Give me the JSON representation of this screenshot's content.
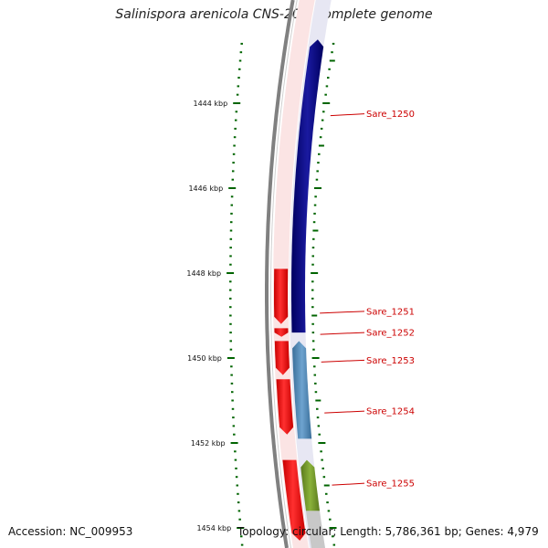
{
  "title": "Salinispora arenicola CNS-205, complete genome",
  "footer": {
    "accession_label": "Accession:",
    "accession": "NC_009953",
    "topology_label": "Topology:",
    "topology": "circular",
    "length_label": "Length:",
    "length": "5,786,361 bp",
    "genes_label": "Genes:",
    "genes": "4,979"
  },
  "axis": {
    "unit": "kbp",
    "start_kbp": 1442.6,
    "end_kbp": 1454.3,
    "major_ticks_kbp": [
      1444,
      1446,
      1448,
      1450,
      1452,
      1454
    ],
    "major_tick_labels": [
      "1444 kbp",
      "1446 kbp",
      "1448 kbp",
      "1450 kbp",
      "1452 kbp",
      "1454 kbp"
    ],
    "minor_tick_step_kbp": 0.2
  },
  "colors": {
    "forward": "#ff0000",
    "reverse_navy": "#000080",
    "reverse_steel": "#4682b4",
    "reverse_olive": "#6b8e23",
    "backbone": "#808080",
    "tick": "#006400",
    "label": "#cc0000"
  },
  "chart_data": {
    "type": "genome-map",
    "genes": [
      {
        "name": "Sare_1250",
        "strand": "-",
        "start_kbp": 1442.5,
        "end_kbp": 1449.4,
        "color": "#000080"
      },
      {
        "name": "Sare_1251",
        "strand": "+",
        "start_kbp": 1447.9,
        "end_kbp": 1449.2,
        "color": "#ff0000"
      },
      {
        "name": "Sare_1252",
        "strand": "+",
        "start_kbp": 1449.3,
        "end_kbp": 1449.5,
        "color": "#ff0000"
      },
      {
        "name": "Sare_1253",
        "strand": "-",
        "start_kbp": 1449.6,
        "end_kbp": 1451.9,
        "color": "#4682b4"
      },
      {
        "name": "Sare_1253",
        "strand": "+",
        "start_kbp": 1449.6,
        "end_kbp": 1450.4,
        "color": "#ff0000"
      },
      {
        "name": "Sare_1254",
        "strand": "+",
        "start_kbp": 1450.5,
        "end_kbp": 1451.8,
        "color": "#ff0000"
      },
      {
        "name": "Sare_1255",
        "strand": "-",
        "start_kbp": 1452.4,
        "end_kbp": 1453.6,
        "color": "#6b8e23"
      },
      {
        "name": "Sare_1255",
        "strand": "+",
        "start_kbp": 1452.4,
        "end_kbp": 1454.3,
        "color": "#ff0000"
      }
    ],
    "labels": [
      {
        "name": "Sare_1250",
        "kbp": 1444.25
      },
      {
        "name": "Sare_1251",
        "kbp": 1448.9
      },
      {
        "name": "Sare_1252",
        "kbp": 1449.4
      },
      {
        "name": "Sare_1253",
        "kbp": 1450.05
      },
      {
        "name": "Sare_1254",
        "kbp": 1451.25
      },
      {
        "name": "Sare_1255",
        "kbp": 1452.95
      }
    ]
  }
}
